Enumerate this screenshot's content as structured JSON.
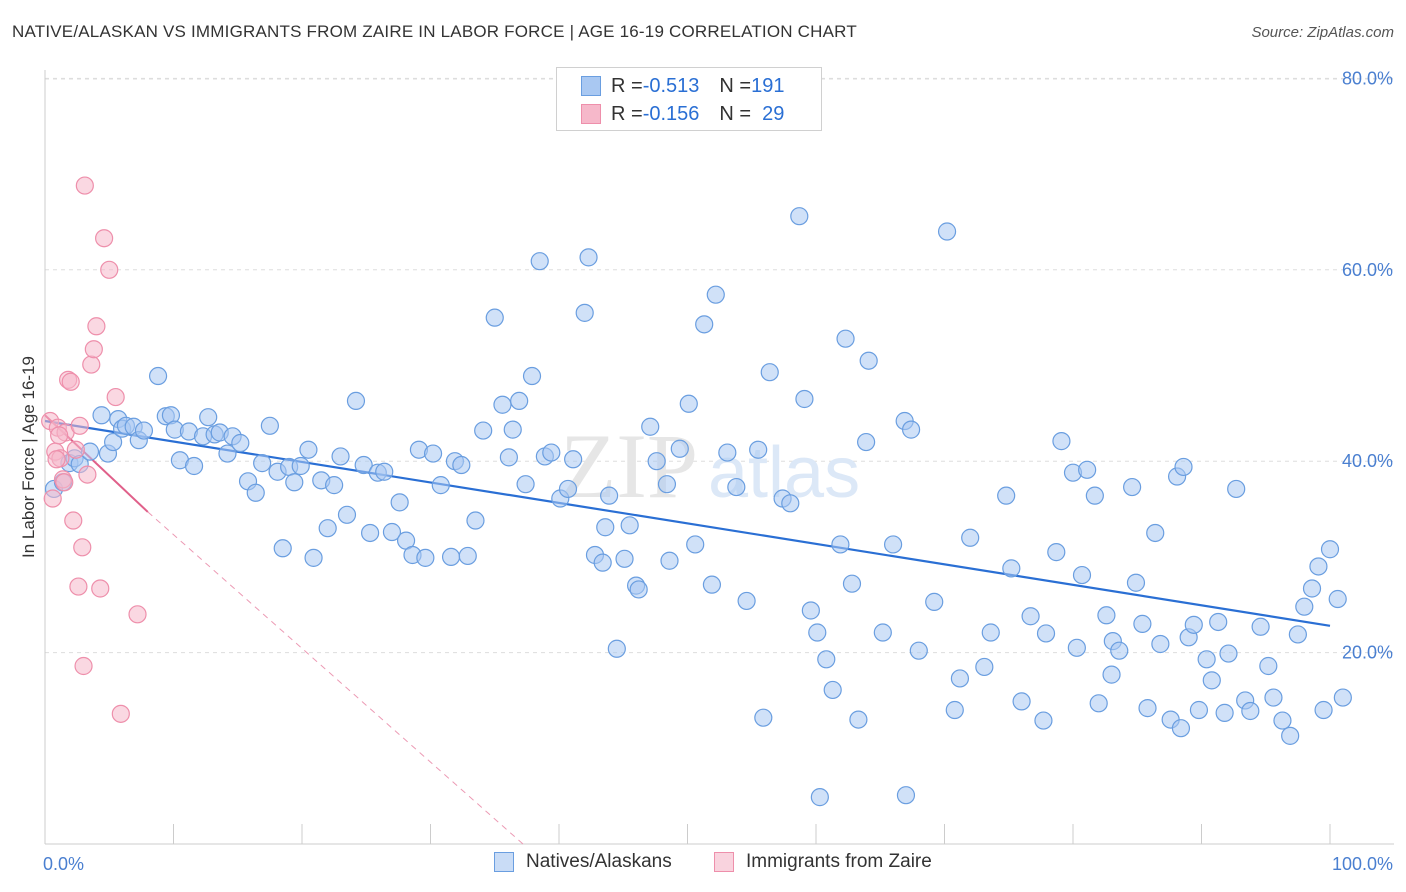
{
  "title": "NATIVE/ALASKAN VS IMMIGRANTS FROM ZAIRE IN LABOR FORCE | AGE 16-19 CORRELATION CHART",
  "source": "Source: ZipAtlas.com",
  "watermark": {
    "zip": "ZIP",
    "atlas": "atlas"
  },
  "legend": {
    "rows": [
      {
        "r_label": "R = ",
        "r_value": "-0.513",
        "n_label": "N = ",
        "n_value": "191"
      },
      {
        "r_label": "R = ",
        "r_value": "-0.156",
        "n_label": "N = ",
        "n_value": "29"
      }
    ]
  },
  "bottom_legend": [
    "Natives/Alaskans",
    "Immigrants from Zaire"
  ],
  "colors": {
    "blue_fill": "#a9c8f2",
    "blue_stroke": "#6a9ee0",
    "blue_line": "#2a6fd4",
    "pink_fill": "#f6b8ca",
    "pink_stroke": "#ee8fab",
    "pink_line": "#e0608a",
    "grid": "#dddddd",
    "tick_text": "#4a7fd0"
  },
  "chart_data": {
    "type": "scatter",
    "title": "NATIVE/ALASKAN VS IMMIGRANTS FROM ZAIRE IN LABOR FORCE | AGE 16-19 CORRELATION CHART",
    "xlabel": "",
    "ylabel": "In Labor Force | Age 16-19",
    "xlim": [
      0,
      100
    ],
    "ylim": [
      0,
      83
    ],
    "x_tick_labels": [
      "0.0%",
      "100.0%"
    ],
    "y_ticks": [
      20,
      40,
      60,
      80
    ],
    "y_tick_labels": [
      "20.0%",
      "40.0%",
      "60.0%",
      "80.0%"
    ],
    "grid": true,
    "series": [
      {
        "name": "Natives/Alaskans",
        "color": "#a9c8f2",
        "trend": {
          "x": [
            0,
            100
          ],
          "y": [
            44.2,
            22.8
          ]
        },
        "points": [
          [
            0.7,
            37.1
          ],
          [
            1.4,
            37.8
          ],
          [
            1.9,
            39.8
          ],
          [
            2.3,
            40.3
          ],
          [
            2.7,
            39.7
          ],
          [
            3.5,
            41.0
          ],
          [
            4.4,
            44.8
          ],
          [
            4.9,
            40.8
          ],
          [
            5.3,
            42.0
          ],
          [
            5.7,
            44.4
          ],
          [
            6.0,
            43.4
          ],
          [
            6.3,
            43.7
          ],
          [
            6.9,
            43.6
          ],
          [
            7.3,
            42.2
          ],
          [
            7.7,
            43.2
          ],
          [
            8.8,
            48.9
          ],
          [
            9.4,
            44.7
          ],
          [
            9.8,
            44.8
          ],
          [
            10.1,
            43.3
          ],
          [
            10.5,
            40.1
          ],
          [
            11.2,
            43.1
          ],
          [
            11.6,
            39.5
          ],
          [
            12.3,
            42.6
          ],
          [
            12.7,
            44.6
          ],
          [
            13.2,
            42.8
          ],
          [
            13.6,
            43.0
          ],
          [
            14.2,
            40.8
          ],
          [
            14.6,
            42.6
          ],
          [
            15.2,
            41.9
          ],
          [
            15.8,
            37.9
          ],
          [
            16.4,
            36.7
          ],
          [
            16.9,
            39.8
          ],
          [
            17.5,
            43.7
          ],
          [
            18.1,
            38.9
          ],
          [
            18.5,
            30.9
          ],
          [
            19.0,
            39.4
          ],
          [
            19.4,
            37.8
          ],
          [
            19.9,
            39.5
          ],
          [
            20.5,
            41.2
          ],
          [
            20.9,
            29.9
          ],
          [
            21.5,
            38.0
          ],
          [
            22.0,
            33.0
          ],
          [
            22.5,
            37.5
          ],
          [
            23.0,
            40.5
          ],
          [
            23.5,
            34.4
          ],
          [
            24.2,
            46.3
          ],
          [
            24.8,
            39.6
          ],
          [
            25.3,
            32.5
          ],
          [
            25.9,
            38.8
          ],
          [
            26.4,
            38.9
          ],
          [
            27.0,
            32.6
          ],
          [
            27.6,
            35.7
          ],
          [
            28.1,
            31.7
          ],
          [
            28.6,
            30.2
          ],
          [
            29.1,
            41.2
          ],
          [
            29.6,
            29.9
          ],
          [
            30.2,
            40.8
          ],
          [
            30.8,
            37.5
          ],
          [
            31.6,
            30.0
          ],
          [
            31.9,
            40.0
          ],
          [
            32.4,
            39.6
          ],
          [
            32.9,
            30.1
          ],
          [
            33.5,
            33.8
          ],
          [
            34.1,
            43.2
          ],
          [
            35.0,
            55.0
          ],
          [
            35.6,
            45.9
          ],
          [
            36.1,
            40.4
          ],
          [
            36.4,
            43.3
          ],
          [
            36.9,
            46.3
          ],
          [
            37.4,
            37.6
          ],
          [
            37.9,
            48.9
          ],
          [
            38.5,
            60.9
          ],
          [
            38.9,
            40.5
          ],
          [
            39.4,
            40.9
          ],
          [
            40.1,
            36.1
          ],
          [
            40.7,
            37.1
          ],
          [
            41.1,
            40.2
          ],
          [
            42.0,
            55.5
          ],
          [
            42.3,
            61.3
          ],
          [
            42.8,
            30.2
          ],
          [
            43.4,
            29.4
          ],
          [
            43.6,
            33.1
          ],
          [
            43.9,
            36.4
          ],
          [
            44.5,
            20.4
          ],
          [
            45.1,
            29.8
          ],
          [
            45.5,
            33.3
          ],
          [
            46.0,
            27.0
          ],
          [
            46.2,
            26.6
          ],
          [
            47.1,
            43.6
          ],
          [
            47.6,
            40.0
          ],
          [
            48.4,
            37.6
          ],
          [
            48.6,
            29.6
          ],
          [
            49.4,
            41.3
          ],
          [
            50.1,
            46.0
          ],
          [
            50.6,
            31.3
          ],
          [
            51.3,
            54.3
          ],
          [
            51.9,
            27.1
          ],
          [
            52.2,
            57.4
          ],
          [
            53.1,
            40.9
          ],
          [
            53.8,
            37.3
          ],
          [
            54.6,
            25.4
          ],
          [
            55.5,
            41.2
          ],
          [
            55.9,
            13.2
          ],
          [
            56.4,
            49.3
          ],
          [
            57.4,
            36.1
          ],
          [
            58.0,
            35.6
          ],
          [
            58.7,
            65.6
          ],
          [
            59.1,
            46.5
          ],
          [
            59.6,
            24.4
          ],
          [
            60.1,
            22.1
          ],
          [
            60.8,
            19.3
          ],
          [
            61.3,
            16.1
          ],
          [
            61.9,
            31.3
          ],
          [
            62.3,
            52.8
          ],
          [
            62.8,
            27.2
          ],
          [
            63.3,
            13.0
          ],
          [
            63.9,
            42.0
          ],
          [
            64.1,
            50.5
          ],
          [
            65.2,
            22.1
          ],
          [
            66.0,
            31.3
          ],
          [
            66.9,
            44.2
          ],
          [
            67.4,
            43.3
          ],
          [
            68.0,
            20.2
          ],
          [
            69.2,
            25.3
          ],
          [
            70.2,
            64.0
          ],
          [
            70.8,
            14.0
          ],
          [
            71.2,
            17.3
          ],
          [
            72.0,
            32.0
          ],
          [
            73.1,
            18.5
          ],
          [
            73.6,
            22.1
          ],
          [
            74.8,
            36.4
          ],
          [
            75.2,
            28.8
          ],
          [
            76.0,
            14.9
          ],
          [
            76.7,
            23.8
          ],
          [
            77.7,
            12.9
          ],
          [
            77.9,
            22.0
          ],
          [
            78.7,
            30.5
          ],
          [
            79.1,
            42.1
          ],
          [
            80.0,
            38.8
          ],
          [
            80.7,
            28.1
          ],
          [
            81.1,
            39.1
          ],
          [
            81.7,
            36.4
          ],
          [
            82.0,
            14.7
          ],
          [
            82.6,
            23.9
          ],
          [
            83.1,
            21.2
          ],
          [
            83.6,
            20.2
          ],
          [
            84.6,
            37.3
          ],
          [
            84.9,
            27.3
          ],
          [
            85.4,
            23.0
          ],
          [
            85.8,
            14.2
          ],
          [
            86.4,
            32.5
          ],
          [
            86.8,
            20.9
          ],
          [
            87.6,
            13.0
          ],
          [
            88.1,
            38.4
          ],
          [
            88.6,
            39.4
          ],
          [
            89.0,
            21.6
          ],
          [
            89.4,
            22.9
          ],
          [
            89.8,
            14.0
          ],
          [
            90.4,
            19.3
          ],
          [
            90.8,
            17.1
          ],
          [
            91.3,
            23.2
          ],
          [
            91.8,
            13.7
          ],
          [
            92.1,
            19.9
          ],
          [
            92.7,
            37.1
          ],
          [
            93.4,
            15.0
          ],
          [
            93.8,
            13.9
          ],
          [
            94.6,
            22.7
          ],
          [
            95.2,
            18.6
          ],
          [
            95.6,
            15.3
          ],
          [
            96.3,
            12.9
          ],
          [
            96.9,
            11.3
          ],
          [
            97.5,
            21.9
          ],
          [
            98.0,
            24.8
          ],
          [
            98.6,
            26.7
          ],
          [
            99.1,
            29.0
          ],
          [
            99.5,
            14.0
          ],
          [
            100.0,
            30.8
          ],
          [
            100.6,
            25.6
          ],
          [
            101.0,
            15.3
          ],
          [
            60.3,
            4.9
          ],
          [
            67.0,
            5.1
          ],
          [
            83.0,
            17.7
          ],
          [
            88.4,
            12.1
          ],
          [
            80.3,
            20.5
          ]
        ]
      },
      {
        "name": "Immigrants from Zaire",
        "color": "#f6b8ca",
        "trend": {
          "x": [
            0,
            8
          ],
          "y": [
            44.8,
            34.7
          ]
        },
        "trend_dashed": {
          "x": [
            8,
            37.2
          ],
          "y": [
            34.7,
            0
          ]
        },
        "points": [
          [
            0.4,
            44.2
          ],
          [
            0.6,
            36.1
          ],
          [
            0.8,
            41.0
          ],
          [
            1.0,
            43.5
          ],
          [
            1.2,
            40.3
          ],
          [
            1.4,
            38.1
          ],
          [
            1.6,
            43.0
          ],
          [
            1.8,
            48.5
          ],
          [
            2.0,
            48.3
          ],
          [
            2.2,
            33.8
          ],
          [
            2.4,
            41.2
          ],
          [
            2.6,
            26.9
          ],
          [
            2.9,
            31.0
          ],
          [
            3.1,
            68.8
          ],
          [
            3.3,
            38.6
          ],
          [
            3.6,
            50.1
          ],
          [
            3.8,
            51.7
          ],
          [
            4.0,
            54.1
          ],
          [
            4.3,
            26.7
          ],
          [
            4.6,
            63.3
          ],
          [
            5.0,
            60.0
          ],
          [
            5.5,
            46.7
          ],
          [
            5.9,
            13.6
          ],
          [
            7.2,
            24.0
          ],
          [
            2.7,
            43.7
          ],
          [
            3.0,
            18.6
          ],
          [
            1.1,
            42.7
          ],
          [
            0.9,
            40.2
          ],
          [
            1.5,
            37.8
          ]
        ]
      }
    ]
  }
}
